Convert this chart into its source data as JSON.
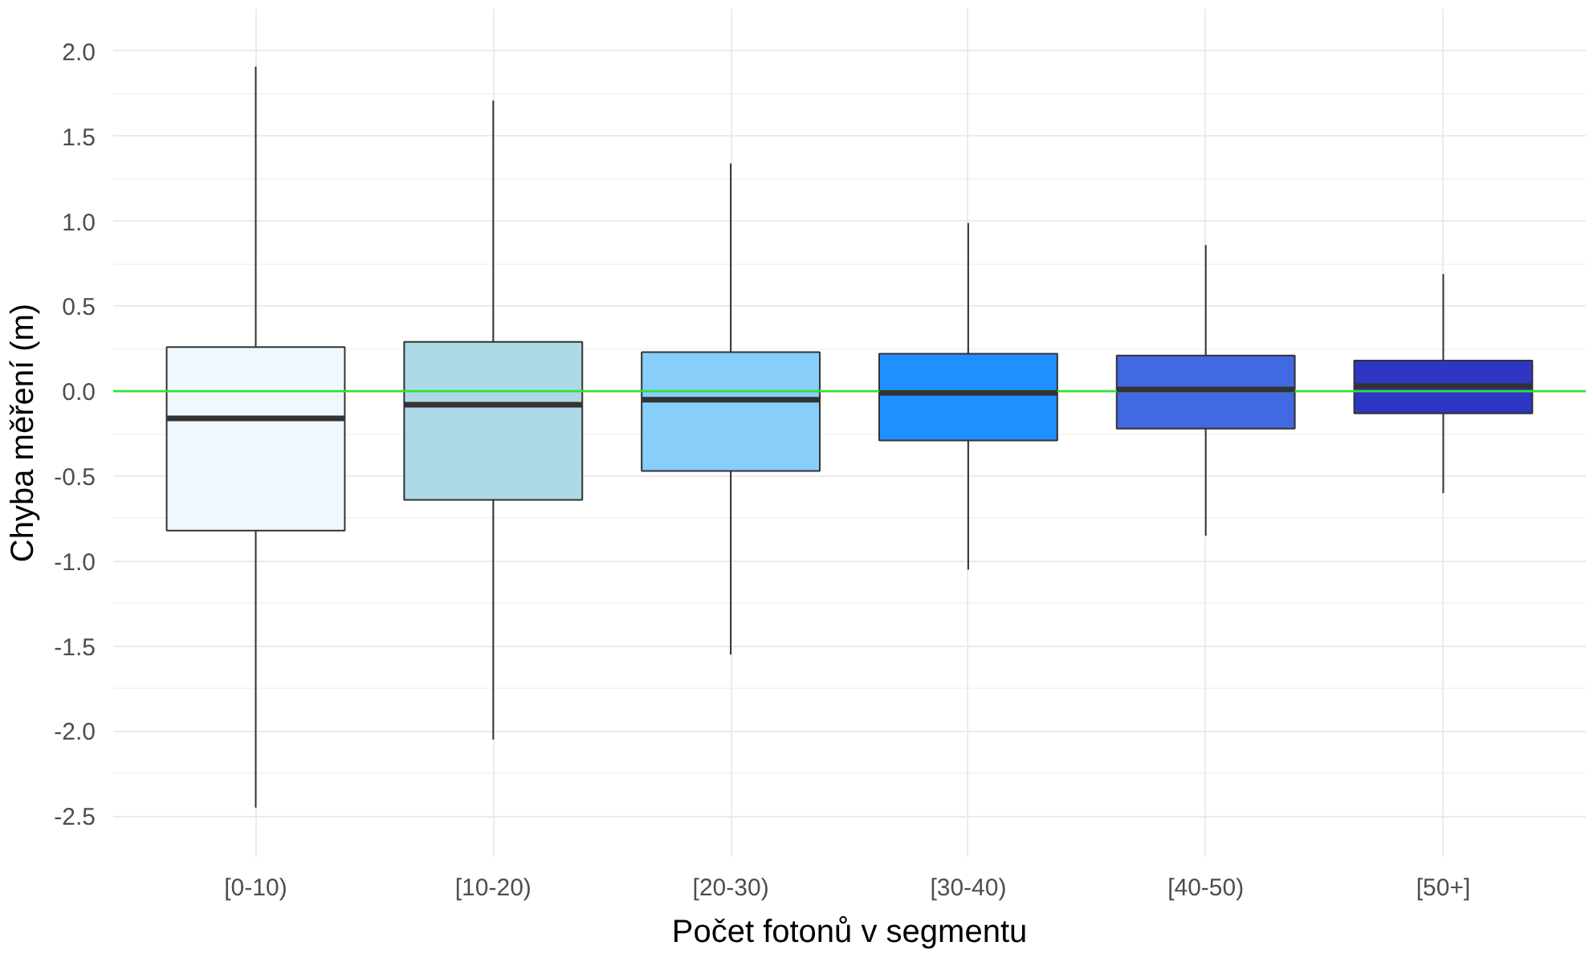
{
  "chart_data": {
    "type": "box",
    "xlabel": "Počet fotonů v segmentu",
    "ylabel": "Chyba měření (m)",
    "categories": [
      "[0-10)",
      "[10-20)",
      "[20-30)",
      "[30-40)",
      "[40-50)",
      "[50+]"
    ],
    "colors": [
      "#f0f8ff",
      "#add8e6",
      "#87cefa",
      "#1e90ff",
      "#4169e1",
      "#2f36c4"
    ],
    "boxes": [
      {
        "low": -2.45,
        "q1": -0.82,
        "median": -0.16,
        "q3": 0.26,
        "high": 1.91
      },
      {
        "low": -2.05,
        "q1": -0.64,
        "median": -0.08,
        "q3": 0.29,
        "high": 1.71
      },
      {
        "low": -1.55,
        "q1": -0.47,
        "median": -0.05,
        "q3": 0.23,
        "high": 1.34
      },
      {
        "low": -1.05,
        "q1": -0.29,
        "median": -0.01,
        "q3": 0.22,
        "high": 0.99
      },
      {
        "low": -0.85,
        "q1": -0.22,
        "median": 0.01,
        "q3": 0.21,
        "high": 0.86
      },
      {
        "low": -0.6,
        "q1": -0.13,
        "median": 0.03,
        "q3": 0.18,
        "high": 0.69
      }
    ],
    "ylim": [
      -2.74,
      2.25
    ],
    "yticks": [
      -2.5,
      {
        "value": -2,
        "label": "-2.0"
      },
      -1.5,
      {
        "value": -1,
        "label": "-1.0"
      },
      -0.5,
      {
        "value": 0,
        "label": "0.0"
      },
      0.5,
      {
        "value": 1,
        "label": "1.0"
      },
      1.5,
      {
        "value": 2,
        "label": "2.0"
      }
    ],
    "ref_lines": [
      {
        "axis": "y",
        "value": 0,
        "label": null,
        "color": "#33e033"
      }
    ],
    "grid": true
  }
}
